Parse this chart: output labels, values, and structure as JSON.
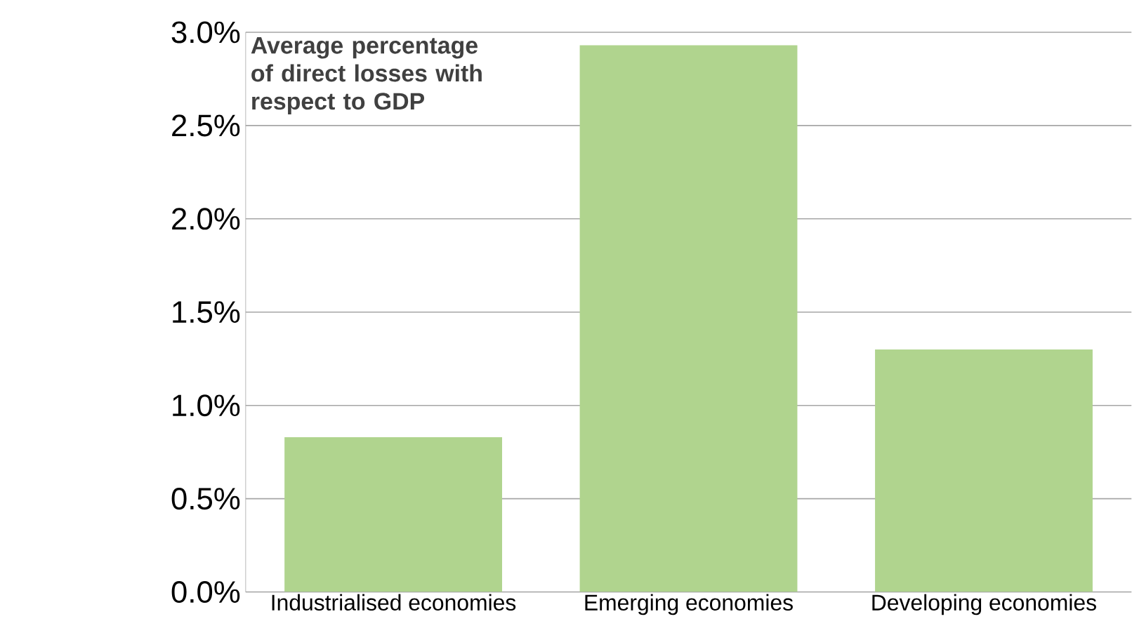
{
  "chart_data": {
    "type": "bar",
    "title": "Average percentage of direct losses with respect to GDP",
    "categories": [
      "Industrialised economies",
      "Emerging economies",
      "Developing economies"
    ],
    "values": [
      0.83,
      2.93,
      1.3
    ],
    "color": "#b0d48e",
    "ylim": [
      0,
      3.0
    ],
    "yticks": [
      {
        "value": 0,
        "label": "0.0%"
      },
      {
        "value": 0.5,
        "label": "0.5%"
      },
      {
        "value": 1.0,
        "label": "1.0%"
      },
      {
        "value": 1.5,
        "label": "1.5%"
      },
      {
        "value": 2.0,
        "label": "2.0%"
      },
      {
        "value": 2.5,
        "label": "2.5%"
      },
      {
        "value": 3.0,
        "label": "3.0%"
      }
    ],
    "grid": "y"
  }
}
